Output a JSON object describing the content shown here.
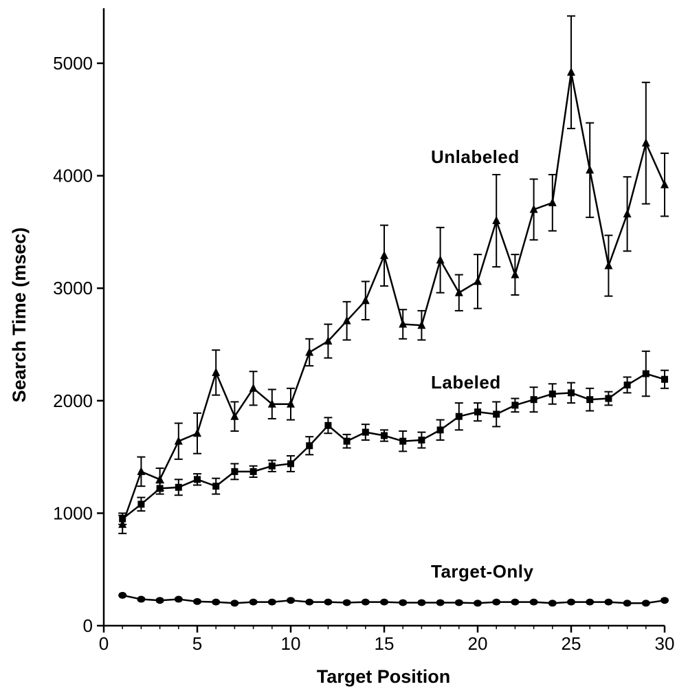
{
  "chart_data": {
    "type": "line",
    "title": "",
    "xlabel": "Target Position",
    "ylabel": "Search Time (msec)",
    "xlim": [
      0,
      30
    ],
    "ylim": [
      0,
      5000
    ],
    "x_ticks": [
      0,
      5,
      10,
      15,
      20,
      25,
      30
    ],
    "y_ticks": [
      0,
      1000,
      2000,
      3000,
      4000,
      5000
    ],
    "grid": false,
    "x": [
      1,
      2,
      3,
      4,
      5,
      6,
      7,
      8,
      9,
      10,
      11,
      12,
      13,
      14,
      15,
      16,
      17,
      18,
      19,
      20,
      21,
      22,
      23,
      24,
      25,
      26,
      27,
      28,
      29,
      30
    ],
    "series": [
      {
        "name": "Unlabeled",
        "marker": "triangle",
        "values": [
          900,
          1370,
          1300,
          1640,
          1710,
          2250,
          1860,
          2110,
          1970,
          1970,
          2430,
          2530,
          2710,
          2890,
          3290,
          2680,
          2670,
          3250,
          2960,
          3060,
          3600,
          3120,
          3700,
          3760,
          4920,
          4050,
          3200,
          3660,
          4290,
          3920
        ],
        "errors": [
          80,
          130,
          100,
          160,
          180,
          200,
          130,
          150,
          130,
          140,
          120,
          150,
          170,
          170,
          270,
          130,
          130,
          290,
          160,
          240,
          410,
          180,
          270,
          250,
          500,
          420,
          270,
          330,
          540,
          280
        ]
      },
      {
        "name": "Labeled",
        "marker": "square",
        "values": [
          950,
          1080,
          1220,
          1230,
          1300,
          1240,
          1370,
          1370,
          1420,
          1440,
          1600,
          1780,
          1640,
          1720,
          1690,
          1640,
          1650,
          1740,
          1860,
          1900,
          1880,
          1960,
          2010,
          2060,
          2070,
          2010,
          2020,
          2140,
          2240,
          2190
        ],
        "errors": [
          50,
          60,
          50,
          70,
          50,
          70,
          70,
          50,
          50,
          70,
          80,
          70,
          60,
          70,
          50,
          90,
          70,
          90,
          120,
          80,
          110,
          60,
          110,
          90,
          90,
          100,
          60,
          70,
          200,
          80
        ]
      },
      {
        "name": "Target-Only",
        "marker": "circle",
        "values": [
          270,
          235,
          225,
          235,
          215,
          210,
          200,
          210,
          210,
          225,
          210,
          210,
          205,
          210,
          210,
          205,
          205,
          205,
          205,
          200,
          210,
          210,
          210,
          200,
          210,
          210,
          210,
          200,
          200,
          225
        ],
        "errors": [
          0,
          0,
          0,
          0,
          0,
          0,
          0,
          0,
          0,
          0,
          0,
          0,
          0,
          0,
          0,
          0,
          0,
          0,
          0,
          0,
          0,
          0,
          0,
          0,
          0,
          0,
          0,
          0,
          0,
          0
        ]
      }
    ]
  }
}
